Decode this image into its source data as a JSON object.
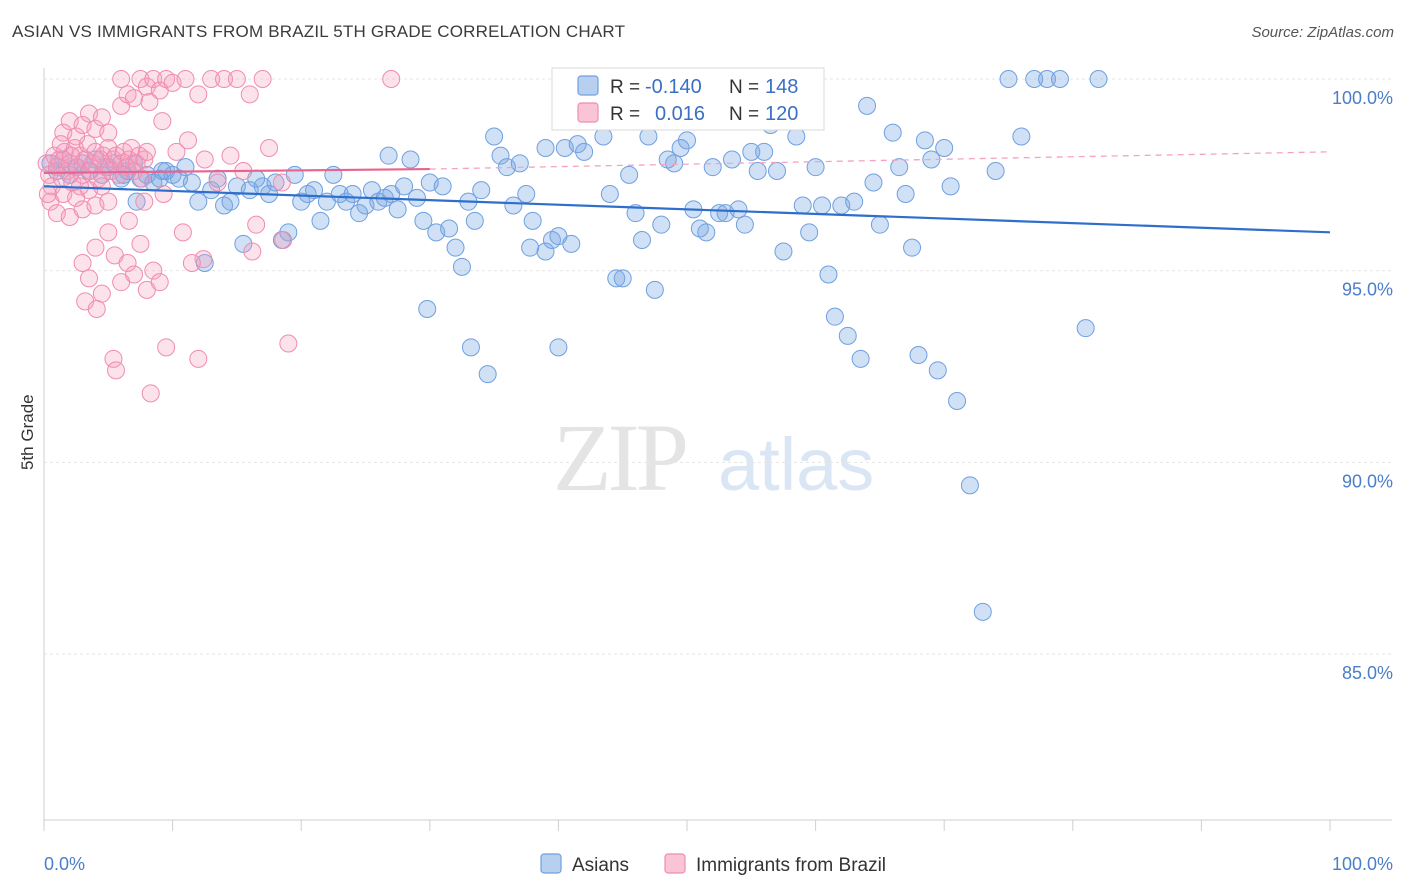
{
  "header": {
    "title": "ASIAN VS IMMIGRANTS FROM BRAZIL 5TH GRADE CORRELATION CHART",
    "source": "Source: ZipAtlas.com"
  },
  "watermark": {
    "zip": "ZIP",
    "atlas": "atlas"
  },
  "legend": {
    "r_label": "R =",
    "n_label": "N =",
    "rows": [
      {
        "r": "-0.140",
        "n": "148",
        "color": "#6fa0e0"
      },
      {
        "r": "0.016",
        "n": "120",
        "color": "#f08cb0"
      }
    ]
  },
  "bottom_legend": [
    {
      "label": "Asians",
      "color": "#6fa0e0"
    },
    {
      "label": "Immigrants from Brazil",
      "color": "#f08cb0"
    }
  ],
  "chart_data": {
    "type": "scatter",
    "title": "ASIAN VS IMMIGRANTS FROM BRAZIL 5TH GRADE CORRELATION CHART",
    "xlabel": "",
    "ylabel": "5th Grade",
    "xlim": [
      0,
      100
    ],
    "ylim": [
      80.5,
      100.5
    ],
    "x_tick_labels": [
      "0.0%",
      "100.0%"
    ],
    "y_ticks": [
      {
        "value": 100,
        "label": "100.0%"
      },
      {
        "value": 95,
        "label": "95.0%"
      },
      {
        "value": 90,
        "label": "90.0%"
      },
      {
        "value": 85,
        "label": "85.0%"
      }
    ],
    "grid": true,
    "series": [
      {
        "name": "Asians",
        "color": "#6fa0e0",
        "trend": {
          "x": [
            0,
            100
          ],
          "y": [
            97.2,
            96.0
          ]
        },
        "points": [
          [
            0.5,
            97.8
          ],
          [
            1,
            97.6
          ],
          [
            1.5,
            97.9
          ],
          [
            2,
            97.5
          ],
          [
            2.5,
            97.7
          ],
          [
            3,
            97.8
          ],
          [
            3.5,
            97.6
          ],
          [
            4,
            97.9
          ],
          [
            4.5,
            97.5
          ],
          [
            5,
            97.7
          ],
          [
            5.5,
            97.8
          ],
          [
            6,
            97.4
          ],
          [
            6.5,
            97.6
          ],
          [
            7,
            97.8
          ],
          [
            7.5,
            97.4
          ],
          [
            8,
            97.5
          ],
          [
            8.5,
            97.3
          ],
          [
            9,
            97.4
          ],
          [
            9.5,
            97.6
          ],
          [
            10,
            97.5
          ],
          [
            11,
            97.7
          ],
          [
            11.5,
            97.3
          ],
          [
            12,
            96.8
          ],
          [
            13,
            97.1
          ],
          [
            13.5,
            97.4
          ],
          [
            14,
            96.7
          ],
          [
            15,
            97.2
          ],
          [
            15.5,
            95.7
          ],
          [
            16,
            97.1
          ],
          [
            17,
            97.2
          ],
          [
            17.5,
            97.0
          ],
          [
            18,
            97.3
          ],
          [
            18.5,
            95.8
          ],
          [
            19,
            96.0
          ],
          [
            20,
            96.8
          ],
          [
            20.5,
            97.0
          ],
          [
            21,
            97.1
          ],
          [
            22,
            96.8
          ],
          [
            23,
            97.0
          ],
          [
            23.5,
            96.8
          ],
          [
            24,
            97.0
          ],
          [
            25,
            96.7
          ],
          [
            25.5,
            97.1
          ],
          [
            26,
            96.8
          ],
          [
            26.5,
            96.9
          ],
          [
            27,
            97.0
          ],
          [
            27.5,
            96.6
          ],
          [
            28,
            97.2
          ],
          [
            28.5,
            97.9
          ],
          [
            29,
            96.9
          ],
          [
            29.5,
            96.3
          ],
          [
            30,
            97.3
          ],
          [
            30.5,
            96.0
          ],
          [
            31,
            97.2
          ],
          [
            32,
            95.6
          ],
          [
            32.5,
            95.1
          ],
          [
            33,
            96.8
          ],
          [
            33.5,
            96.3
          ],
          [
            34,
            97.1
          ],
          [
            35,
            98.5
          ],
          [
            35.5,
            98.0
          ],
          [
            36,
            97.7
          ],
          [
            36.5,
            96.7
          ],
          [
            37,
            97.8
          ],
          [
            37.5,
            97.0
          ],
          [
            38,
            96.3
          ],
          [
            39,
            95.5
          ],
          [
            39.5,
            95.8
          ],
          [
            40,
            95.9
          ],
          [
            40.5,
            98.2
          ],
          [
            41,
            95.7
          ],
          [
            41.5,
            98.3
          ],
          [
            42,
            98.1
          ],
          [
            43,
            98.9
          ],
          [
            43.5,
            98.5
          ],
          [
            44,
            97.0
          ],
          [
            44.5,
            94.8
          ],
          [
            45,
            94.8
          ],
          [
            45.5,
            97.5
          ],
          [
            46,
            96.5
          ],
          [
            46.5,
            95.8
          ],
          [
            47,
            98.5
          ],
          [
            47.5,
            94.5
          ],
          [
            48,
            96.2
          ],
          [
            48.5,
            97.9
          ],
          [
            49,
            97.8
          ],
          [
            49.5,
            98.2
          ],
          [
            50,
            98.4
          ],
          [
            50.5,
            96.6
          ],
          [
            51,
            96.1
          ],
          [
            51.5,
            96.0
          ],
          [
            52,
            97.7
          ],
          [
            52.5,
            96.5
          ],
          [
            53,
            96.5
          ],
          [
            53.5,
            97.9
          ],
          [
            54,
            96.6
          ],
          [
            54.5,
            96.2
          ],
          [
            55,
            98.1
          ],
          [
            55.5,
            97.6
          ],
          [
            56,
            98.1
          ],
          [
            56.5,
            98.8
          ],
          [
            57,
            97.6
          ],
          [
            57.5,
            95.5
          ],
          [
            58,
            99.0
          ],
          [
            58.5,
            98.5
          ],
          [
            59,
            96.7
          ],
          [
            59.5,
            96.0
          ],
          [
            60,
            97.7
          ],
          [
            60.5,
            96.7
          ],
          [
            61,
            94.9
          ],
          [
            61.5,
            93.8
          ],
          [
            62,
            96.7
          ],
          [
            62.5,
            93.3
          ],
          [
            63,
            96.8
          ],
          [
            63.5,
            92.7
          ],
          [
            64,
            99.3
          ],
          [
            64.5,
            97.3
          ],
          [
            65,
            96.2
          ],
          [
            66,
            98.6
          ],
          [
            66.5,
            97.7
          ],
          [
            67,
            97.0
          ],
          [
            67.5,
            95.6
          ],
          [
            68,
            92.8
          ],
          [
            68.5,
            98.4
          ],
          [
            69,
            97.9
          ],
          [
            69.5,
            92.4
          ],
          [
            70,
            98.2
          ],
          [
            70.5,
            97.2
          ],
          [
            71,
            91.6
          ],
          [
            72,
            89.4
          ],
          [
            73,
            86.1
          ],
          [
            74,
            97.6
          ],
          [
            75,
            100.0
          ],
          [
            76,
            98.5
          ],
          [
            77,
            100.0
          ],
          [
            78,
            100.0
          ],
          [
            79,
            100.0
          ],
          [
            81,
            93.5
          ],
          [
            82,
            100.0
          ],
          [
            33.2,
            93.0
          ],
          [
            34.5,
            92.3
          ],
          [
            40,
            93.0
          ],
          [
            39,
            98.2
          ],
          [
            37.8,
            95.6
          ],
          [
            31.5,
            96.1
          ],
          [
            29.8,
            94.0
          ],
          [
            26.8,
            98.0
          ],
          [
            24.5,
            96.5
          ],
          [
            22.5,
            97.5
          ],
          [
            21.5,
            96.3
          ],
          [
            19.5,
            97.5
          ],
          [
            16.5,
            97.4
          ],
          [
            14.5,
            96.8
          ],
          [
            12.5,
            95.2
          ],
          [
            10.5,
            97.4
          ],
          [
            9.2,
            97.6
          ],
          [
            7.2,
            96.8
          ],
          [
            6.2,
            97.5
          ]
        ]
      },
      {
        "name": "Immigrants from Brazil",
        "color": "#f08cb0",
        "trend": {
          "x": [
            0,
            30
          ],
          "y": [
            97.55,
            97.65
          ],
          "dashed_to": [
            100,
            98.1
          ]
        },
        "points": [
          [
            0.2,
            97.8
          ],
          [
            0.4,
            97.5
          ],
          [
            0.6,
            97.2
          ],
          [
            0.8,
            98.0
          ],
          [
            1,
            97.7
          ],
          [
            1.2,
            97.9
          ],
          [
            1.4,
            97.4
          ],
          [
            1.6,
            98.1
          ],
          [
            1.8,
            97.6
          ],
          [
            2,
            97.8
          ],
          [
            2.2,
            97.3
          ],
          [
            2.4,
            98.2
          ],
          [
            2.6,
            97.7
          ],
          [
            2.8,
            98.0
          ],
          [
            3,
            97.5
          ],
          [
            3.2,
            97.9
          ],
          [
            3.4,
            98.3
          ],
          [
            3.6,
            97.6
          ],
          [
            3.8,
            97.8
          ],
          [
            4,
            98.1
          ],
          [
            4.2,
            97.4
          ],
          [
            4.4,
            97.9
          ],
          [
            4.6,
            98.0
          ],
          [
            4.8,
            97.7
          ],
          [
            5,
            98.2
          ],
          [
            5.2,
            97.6
          ],
          [
            5.4,
            97.9
          ],
          [
            5.6,
            98.0
          ],
          [
            5.8,
            97.5
          ],
          [
            6,
            97.8
          ],
          [
            6.2,
            98.1
          ],
          [
            6.4,
            97.7
          ],
          [
            6.6,
            97.9
          ],
          [
            6.8,
            98.2
          ],
          [
            7,
            97.6
          ],
          [
            7.2,
            97.8
          ],
          [
            7.4,
            98.0
          ],
          [
            7.6,
            97.4
          ],
          [
            7.8,
            97.9
          ],
          [
            8,
            98.1
          ],
          [
            0.5,
            96.8
          ],
          [
            1,
            96.5
          ],
          [
            1.5,
            97.0
          ],
          [
            2,
            96.4
          ],
          [
            2.5,
            96.9
          ],
          [
            3,
            96.6
          ],
          [
            3.5,
            97.1
          ],
          [
            4,
            96.7
          ],
          [
            4.5,
            97.2
          ],
          [
            5,
            96.8
          ],
          [
            1.5,
            98.6
          ],
          [
            2,
            98.9
          ],
          [
            2.5,
            98.5
          ],
          [
            3,
            98.8
          ],
          [
            3.5,
            99.1
          ],
          [
            4,
            98.7
          ],
          [
            4.5,
            99.0
          ],
          [
            5,
            98.6
          ],
          [
            6,
            99.3
          ],
          [
            6.5,
            99.6
          ],
          [
            7,
            99.5
          ],
          [
            7.5,
            100.0
          ],
          [
            8,
            99.8
          ],
          [
            8.5,
            100.0
          ],
          [
            9,
            99.7
          ],
          [
            9.5,
            100.0
          ],
          [
            10,
            99.9
          ],
          [
            11,
            100.0
          ],
          [
            12,
            99.6
          ],
          [
            13,
            100.0
          ],
          [
            14,
            100.0
          ],
          [
            15,
            100.0
          ],
          [
            16,
            99.6
          ],
          [
            17,
            100.0
          ],
          [
            27,
            100.0
          ],
          [
            6,
            100.0
          ],
          [
            8.2,
            99.4
          ],
          [
            9.2,
            98.9
          ],
          [
            10.3,
            98.1
          ],
          [
            11.2,
            98.4
          ],
          [
            12.5,
            97.9
          ],
          [
            13.5,
            97.3
          ],
          [
            14.5,
            98.0
          ],
          [
            15.5,
            97.6
          ],
          [
            16.5,
            96.2
          ],
          [
            17.5,
            98.2
          ],
          [
            18.5,
            97.3
          ],
          [
            3,
            95.2
          ],
          [
            3.5,
            94.8
          ],
          [
            4,
            95.6
          ],
          [
            4.5,
            94.4
          ],
          [
            5,
            96.0
          ],
          [
            5.5,
            95.4
          ],
          [
            6,
            94.7
          ],
          [
            6.5,
            95.2
          ],
          [
            7,
            94.9
          ],
          [
            7.5,
            95.7
          ],
          [
            8,
            94.5
          ],
          [
            8.5,
            95.0
          ],
          [
            9,
            94.7
          ],
          [
            3.2,
            94.2
          ],
          [
            4.1,
            94.0
          ],
          [
            5.4,
            92.7
          ],
          [
            5.6,
            92.4
          ],
          [
            8.3,
            91.8
          ],
          [
            9.5,
            93.0
          ],
          [
            12,
            92.7
          ],
          [
            19,
            93.1
          ],
          [
            12.4,
            95.3
          ],
          [
            16.2,
            95.5
          ],
          [
            18.6,
            95.8
          ],
          [
            10.8,
            96.0
          ],
          [
            11.5,
            95.2
          ],
          [
            6.6,
            96.3
          ],
          [
            7.8,
            96.8
          ],
          [
            9.3,
            97.0
          ],
          [
            2.8,
            97.2
          ],
          [
            0.3,
            97.0
          ],
          [
            1.3,
            98.3
          ],
          [
            2.1,
            98.0
          ]
        ]
      }
    ]
  }
}
